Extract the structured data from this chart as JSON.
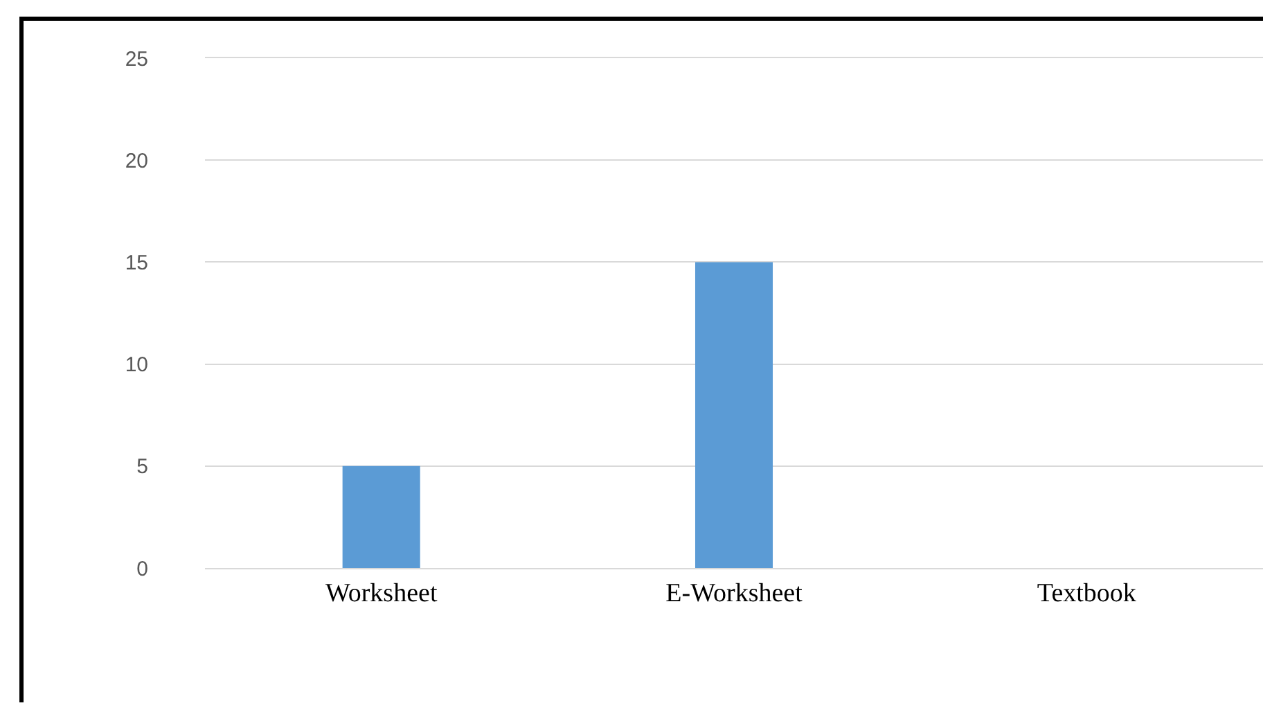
{
  "chart_data": {
    "type": "bar",
    "categories": [
      "Worksheet",
      "E-Worksheet",
      "Textbook"
    ],
    "values": [
      5,
      15,
      0
    ],
    "color": "#5b9bd5",
    "ylim": [
      0,
      25
    ],
    "yticks": [
      0,
      5,
      10,
      15,
      20,
      25
    ],
    "grid": "y"
  }
}
